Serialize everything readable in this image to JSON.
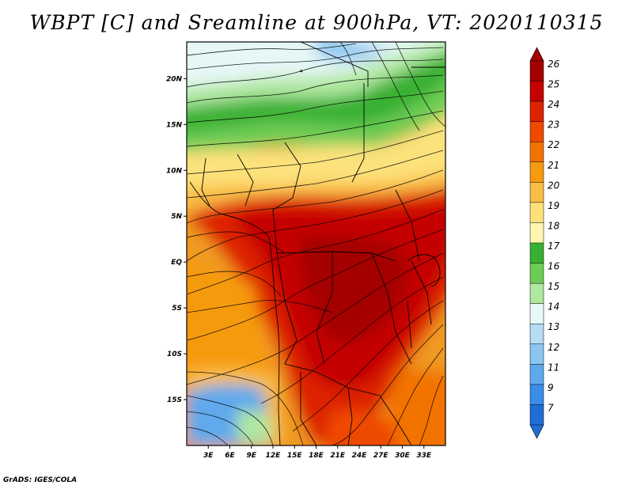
{
  "title": "WBPT [C] and Sreamline at 900hPa, VT: 2020110315",
  "footer": "GrADS: IGES/COLA",
  "map": {
    "variable": "wet-bulb potential temperature",
    "units": "C",
    "level": "900hPa",
    "valid_time": "2020110315",
    "lon_range": [
      0,
      36
    ],
    "lat_range": [
      -20,
      24
    ],
    "lon_ticks": [
      "3E",
      "6E",
      "9E",
      "12E",
      "15E",
      "18E",
      "21E",
      "24E",
      "27E",
      "30E",
      "33E"
    ],
    "lat_ticks": [
      "20N",
      "15N",
      "10N",
      "5N",
      "EQ",
      "5S",
      "10S",
      "15S"
    ]
  },
  "colorbar": {
    "labels": [
      "26",
      "25",
      "24",
      "23",
      "22",
      "21",
      "20",
      "19",
      "18",
      "17",
      "16",
      "15",
      "14",
      "13",
      "12",
      "11",
      "9",
      "7"
    ],
    "colors": [
      "#a50000",
      "#c40000",
      "#dd2400",
      "#ee4a00",
      "#f27300",
      "#f69a10",
      "#f9be45",
      "#fde27c",
      "#fdf6b0",
      "#38b032",
      "#6dcc55",
      "#b0e8a0",
      "#e8f8f8",
      "#b5ddf5",
      "#8bc6f1",
      "#5ea9ec",
      "#3a8ce8",
      "#1f6ed6"
    ]
  },
  "colors": {
    "ocean_cool": "#62aee6",
    "land_hot": "#c82810",
    "north_cool": "#e6f7f7",
    "streamline": "#000000",
    "border": "#000000"
  }
}
